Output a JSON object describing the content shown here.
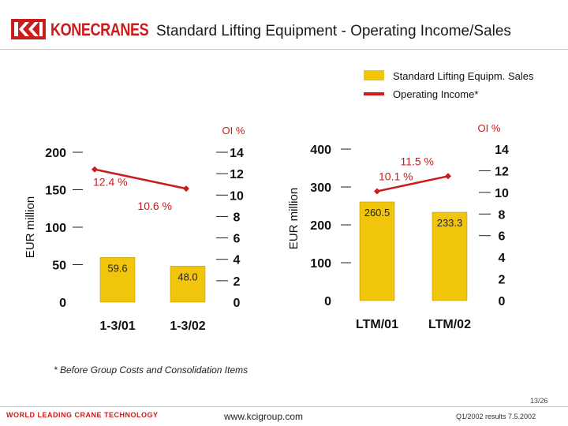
{
  "header": {
    "logo_text": "KONECRANES",
    "title": "Standard Lifting Equipment - Operating Income/Sales"
  },
  "legend": {
    "sales_label": "Standard Lifting Equipm. Sales",
    "oi_label": "Operating Income*"
  },
  "colors": {
    "bar": "#f2c50d",
    "line": "#cc1b1b",
    "brand": "#cc1b1b"
  },
  "chart_data": [
    {
      "type": "bar",
      "categories": [
        "1-3/01",
        "1-3/02"
      ],
      "series": [
        {
          "name": "Standard Lifting Equipm. Sales",
          "axis": "left",
          "values": [
            59.6,
            48.0
          ],
          "labels": [
            "59.6",
            "48.0"
          ]
        },
        {
          "name": "OI %",
          "axis": "right",
          "type": "line",
          "values": [
            12.4,
            10.6
          ],
          "labels": [
            "12.4 %",
            "10.6 %"
          ]
        }
      ],
      "ylabel": "EUR million",
      "ylim": [
        0,
        200
      ],
      "yticks": [
        "0",
        "50",
        "100",
        "150",
        "200"
      ],
      "y2label": "OI %",
      "y2lim": [
        0,
        14
      ],
      "y2ticks": [
        "0",
        "2",
        "4",
        "6",
        "8",
        "10",
        "12",
        "14"
      ]
    },
    {
      "type": "bar",
      "categories": [
        "LTM/01",
        "LTM/02"
      ],
      "series": [
        {
          "name": "Standard Lifting Equipm. Sales",
          "axis": "left",
          "values": [
            260.5,
            233.3
          ],
          "labels": [
            "260.5",
            "233.3"
          ]
        },
        {
          "name": "OI %",
          "axis": "right",
          "type": "line",
          "values": [
            10.1,
            11.5
          ],
          "labels": [
            "10.1 %",
            "11.5 %"
          ]
        }
      ],
      "ylabel": "EUR million",
      "ylim": [
        0,
        400
      ],
      "yticks": [
        "0",
        "100",
        "200",
        "300",
        "400"
      ],
      "y2label": "OI %",
      "y2lim": [
        0,
        14
      ],
      "y2ticks": [
        "0",
        "2",
        "4",
        "6",
        "8",
        "10",
        "12",
        "14"
      ]
    }
  ],
  "footer": {
    "footnote": "* Before Group Costs and Consolidation Items",
    "page_num": "13/26",
    "tagline": "WORLD LEADING CRANE TECHNOLOGY",
    "website": "www.kcigroup.com",
    "date": "Q1/2002 results 7.5.2002"
  }
}
